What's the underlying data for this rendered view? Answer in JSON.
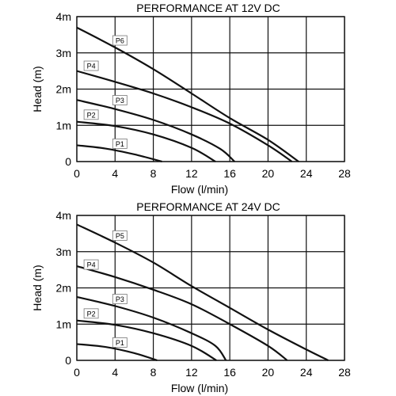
{
  "chart_data": [
    {
      "type": "line",
      "title": "PERFORMANCE AT 12V DC",
      "xlabel": "Flow (l/min)",
      "ylabel": "Head (m)",
      "xlim": [
        0,
        28
      ],
      "ylim": [
        0,
        4
      ],
      "x_ticks": [
        "0",
        "4",
        "8",
        "12",
        "16",
        "20",
        "24",
        "28"
      ],
      "y_ticks": [
        "0",
        "1m",
        "2m",
        "3m",
        "4m"
      ],
      "grid": true,
      "series": [
        {
          "name": "P1",
          "label_pos": [
            4.5,
            0.45
          ],
          "points": [
            [
              0,
              0.45
            ],
            [
              3,
              0.36
            ],
            [
              6,
              0.2
            ],
            [
              8.9,
              0
            ]
          ]
        },
        {
          "name": "P2",
          "label_pos": [
            1.5,
            1.25
          ],
          "points": [
            [
              0,
              1.1
            ],
            [
              4,
              0.98
            ],
            [
              8,
              0.75
            ],
            [
              12,
              0.38
            ],
            [
              14.5,
              0
            ]
          ]
        },
        {
          "name": "P3",
          "label_pos": [
            4.5,
            1.65
          ],
          "points": [
            [
              0,
              1.7
            ],
            [
              4,
              1.45
            ],
            [
              8,
              1.15
            ],
            [
              12,
              0.75
            ],
            [
              15,
              0.35
            ],
            [
              16.5,
              0
            ]
          ]
        },
        {
          "name": "P4",
          "label_pos": [
            1.5,
            2.6
          ],
          "points": [
            [
              0,
              2.5
            ],
            [
              4,
              2.2
            ],
            [
              8,
              1.88
            ],
            [
              12,
              1.5
            ],
            [
              16,
              1.05
            ],
            [
              20,
              0.45
            ],
            [
              22.5,
              0
            ]
          ]
        },
        {
          "name": "P6",
          "label_pos": [
            4.5,
            3.3
          ],
          "points": [
            [
              0,
              3.7
            ],
            [
              4,
              3.15
            ],
            [
              8,
              2.55
            ],
            [
              12,
              1.88
            ],
            [
              16,
              1.2
            ],
            [
              20,
              0.6
            ],
            [
              23.2,
              0
            ]
          ]
        }
      ]
    },
    {
      "type": "line",
      "title": "PERFORMANCE AT 24V DC",
      "xlabel": "Flow (l/min)",
      "ylabel": "Head (m)",
      "xlim": [
        0,
        28
      ],
      "ylim": [
        0,
        4
      ],
      "x_ticks": [
        "0",
        "4",
        "8",
        "12",
        "16",
        "20",
        "24",
        "28"
      ],
      "y_ticks": [
        "0",
        "1m",
        "2m",
        "3m",
        "4m"
      ],
      "grid": true,
      "series": [
        {
          "name": "P1",
          "label_pos": [
            4.5,
            0.45
          ],
          "points": [
            [
              0,
              0.45
            ],
            [
              3,
              0.37
            ],
            [
              6,
              0.2
            ],
            [
              8.4,
              0
            ]
          ]
        },
        {
          "name": "P2",
          "label_pos": [
            1.5,
            1.25
          ],
          "points": [
            [
              0,
              1.1
            ],
            [
              4,
              0.98
            ],
            [
              8,
              0.75
            ],
            [
              12,
              0.4
            ],
            [
              14.6,
              0
            ]
          ]
        },
        {
          "name": "P3",
          "label_pos": [
            4.5,
            1.65
          ],
          "points": [
            [
              0,
              1.75
            ],
            [
              4,
              1.5
            ],
            [
              8,
              1.18
            ],
            [
              12,
              0.75
            ],
            [
              14.5,
              0.4
            ],
            [
              15.6,
              0
            ]
          ]
        },
        {
          "name": "P4",
          "label_pos": [
            1.5,
            2.6
          ],
          "points": [
            [
              0,
              2.6
            ],
            [
              4,
              2.3
            ],
            [
              8,
              1.95
            ],
            [
              12,
              1.55
            ],
            [
              16,
              1.0
            ],
            [
              20,
              0.4
            ],
            [
              22,
              0
            ]
          ]
        },
        {
          "name": "P5",
          "label_pos": [
            4.5,
            3.4
          ],
          "points": [
            [
              0,
              3.75
            ],
            [
              4,
              3.25
            ],
            [
              8,
              2.7
            ],
            [
              12,
              2.05
            ],
            [
              16,
              1.45
            ],
            [
              20,
              0.85
            ],
            [
              24,
              0.3
            ],
            [
              26.3,
              0
            ]
          ]
        }
      ]
    }
  ]
}
